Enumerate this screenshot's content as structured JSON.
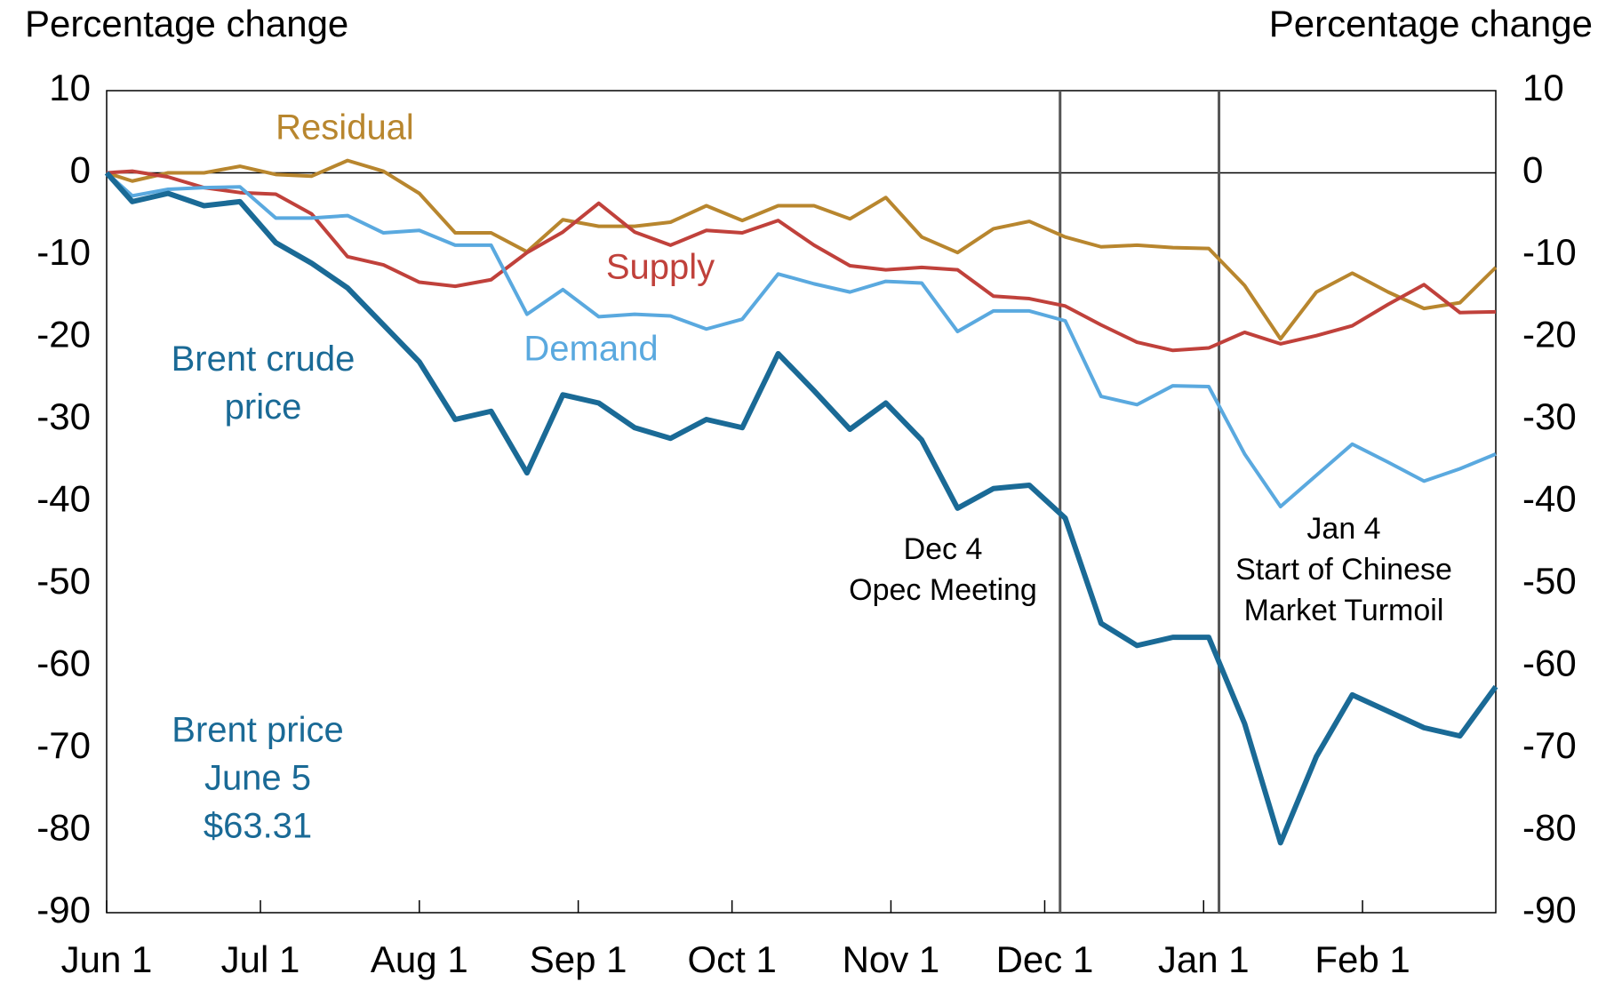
{
  "chart_data": {
    "type": "line",
    "ylabel": "Percentage change",
    "y2label": "Percentage change",
    "xlim": [
      0,
      271
    ],
    "xticks": [
      {
        "value": 0,
        "label": "Jun 1"
      },
      {
        "value": 30,
        "label": "Jul 1"
      },
      {
        "value": 61,
        "label": "Aug 1"
      },
      {
        "value": 92,
        "label": "Sep 1"
      },
      {
        "value": 122,
        "label": "Oct 1"
      },
      {
        "value": 153,
        "label": "Nov 1"
      },
      {
        "value": 183,
        "label": "Dec 1"
      },
      {
        "value": 214,
        "label": "Jan 1"
      },
      {
        "value": 245,
        "label": "Feb 1"
      }
    ],
    "ylim": [
      -90,
      10
    ],
    "yticks": [
      10,
      0,
      -10,
      -20,
      -30,
      -40,
      -50,
      -60,
      -70,
      -80,
      -90
    ],
    "y2lim": [
      -90,
      10
    ],
    "y2ticks": [
      10,
      0,
      -10,
      -20,
      -30,
      -40,
      -50,
      -60,
      -70,
      -80,
      -90
    ],
    "x": [
      0,
      5,
      12,
      19,
      26,
      33,
      40,
      47,
      54,
      61,
      68,
      75,
      82,
      89,
      96,
      103,
      110,
      117,
      124,
      131,
      138,
      145,
      152,
      159,
      166,
      173,
      180,
      187,
      194,
      201,
      208,
      215,
      222,
      229,
      236,
      243,
      250,
      257,
      264,
      271
    ],
    "series": [
      {
        "name": "Residual",
        "color": "#b8862e",
        "values": [
          0,
          -1,
          0,
          0,
          0.8,
          -0.2,
          -0.4,
          1.5,
          0.2,
          -2.5,
          -7.3,
          -7.3,
          -9.6,
          -5.7,
          -6.5,
          -6.5,
          -6,
          -4,
          -5.8,
          -4,
          -4,
          -5.6,
          -3,
          -7.8,
          -9.7,
          -6.8,
          -5.9,
          -7.8,
          -9,
          -8.8,
          -9.1,
          -9.2,
          -13.7,
          -20.2,
          -14.5,
          -12.2,
          -14.5,
          -16.5,
          -15.8,
          -11.5
        ]
      },
      {
        "name": "Supply",
        "color": "#c0413b",
        "values": [
          0,
          0.2,
          -0.5,
          -1.8,
          -2.4,
          -2.6,
          -5,
          -10.2,
          -11.2,
          -13.3,
          -13.8,
          -13,
          -9.7,
          -7.2,
          -3.7,
          -7.2,
          -8.8,
          -7,
          -7.3,
          -5.8,
          -8.8,
          -11.3,
          -11.8,
          -11.5,
          -11.8,
          -15,
          -15.3,
          -16.2,
          -18.5,
          -20.6,
          -21.6,
          -21.3,
          -19.4,
          -20.8,
          -19.8,
          -18.6,
          -16,
          -13.6,
          -17,
          -16.9
        ]
      },
      {
        "name": "Demand",
        "color": "#5aa9df",
        "values": [
          0,
          -2.8,
          -2,
          -1.8,
          -1.7,
          -5.5,
          -5.5,
          -5.2,
          -7.3,
          -7,
          -8.8,
          -8.8,
          -17.2,
          -14.2,
          -17.5,
          -17.2,
          -17.4,
          -19,
          -17.8,
          -12.3,
          -13.5,
          -14.5,
          -13.2,
          -13.4,
          -19.3,
          -16.8,
          -16.8,
          -18,
          -27.2,
          -28.2,
          -25.9,
          -26,
          -34.2,
          -40.6,
          -36.8,
          -33,
          -35.2,
          -37.5,
          -36,
          -34.2
        ]
      },
      {
        "name": "Brent crude price",
        "color": "#1a6a96",
        "values": [
          0,
          -3.5,
          -2.5,
          -4,
          -3.5,
          -8.5,
          -11,
          -14,
          -18.5,
          -23,
          -30,
          -29,
          -36.5,
          -27,
          -28,
          -31,
          -32.3,
          -30,
          -31,
          -22,
          -26.5,
          -31.2,
          -28,
          -32.5,
          -40.8,
          -38.4,
          -38,
          -42,
          -54.8,
          -57.5,
          -56.5,
          -56.5,
          -67,
          -81.5,
          -71,
          -63.5,
          -65.5,
          -67.5,
          -68.5,
          -62.5
        ]
      }
    ],
    "events": [
      {
        "x": 186,
        "lines": [
          "Dec 4",
          "Opec Meeting"
        ]
      },
      {
        "x": 217,
        "lines": [
          "Jan 4",
          "Start of Chinese",
          "Market Turmoil"
        ]
      }
    ],
    "note": [
      "Brent price",
      "June 5",
      "$63.31"
    ],
    "note_color": "#1a6a96"
  }
}
